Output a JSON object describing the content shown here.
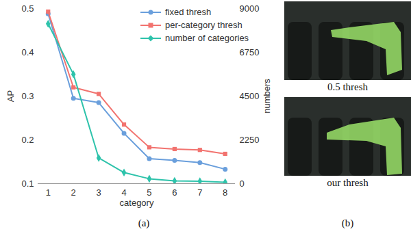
{
  "chart_data": {
    "type": "line",
    "panel_label": "(a)",
    "x_label": "category",
    "y_label": "AP",
    "y2_label": "numbers",
    "x": [
      1,
      2,
      3,
      4,
      5,
      6,
      7,
      8
    ],
    "xlim": [
      0.6,
      8.4
    ],
    "xticks": [
      1,
      2,
      3,
      4,
      5,
      6,
      7,
      8
    ],
    "ylim": [
      0.1,
      0.5
    ],
    "yticks": [
      0.1,
      0.2,
      0.3,
      0.4,
      0.5
    ],
    "y2lim": [
      0,
      9000
    ],
    "y2ticks": [
      0,
      2250,
      4500,
      6750,
      9000
    ],
    "legend": "top-right",
    "series": [
      {
        "name": "fixed thresh",
        "color": "#6a9fdc",
        "marker": "circle",
        "values": [
          0.488,
          0.295,
          0.285,
          0.215,
          0.157,
          0.153,
          0.148,
          0.133
        ]
      },
      {
        "name": "per-category thresh",
        "color": "#f2736f",
        "marker": "square",
        "values": [
          0.493,
          0.32,
          0.305,
          0.235,
          0.183,
          0.179,
          0.177,
          0.168
        ]
      },
      {
        "name": "number of categories",
        "color": "#2ec3ab",
        "marker": "diamond",
        "axis": "y2",
        "values": [
          8220,
          5620,
          1320,
          570,
          250,
          140,
          125,
          70
        ]
      }
    ]
  },
  "figure": {
    "panel_label": "(b)",
    "images": [
      {
        "caption": "0.5 thresh"
      },
      {
        "caption": "our thresh"
      }
    ]
  }
}
